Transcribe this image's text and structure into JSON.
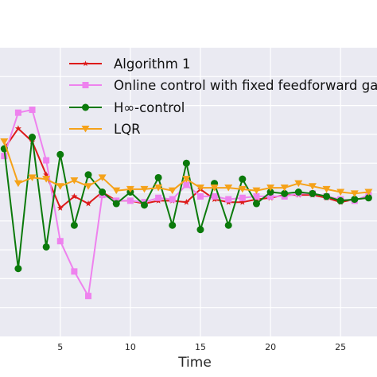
{
  "chart_data": {
    "type": "line",
    "title": "",
    "xlabel": "Time",
    "ylabel": "",
    "xlim": [
      0.7,
      27.6
    ],
    "ylim": [
      -1.0,
      1.0
    ],
    "xticks": [
      5,
      10,
      15,
      20,
      25
    ],
    "xtick_labels": [
      "5",
      "10",
      "15",
      "20",
      "25"
    ],
    "grid": true,
    "legend_position": "top-right",
    "x": [
      1,
      2,
      3,
      4,
      5,
      6,
      7,
      8,
      9,
      10,
      11,
      12,
      13,
      14,
      15,
      16,
      17,
      18,
      19,
      20,
      21,
      22,
      23,
      24,
      25,
      26,
      27
    ],
    "series": [
      {
        "name": "Algorithm 1",
        "color": "#dd1a1a",
        "marker": "star",
        "values": [
          0.3,
          0.44,
          0.35,
          0.12,
          -0.11,
          -0.03,
          -0.08,
          0.0,
          -0.06,
          -0.06,
          -0.08,
          -0.06,
          -0.06,
          -0.07,
          0.02,
          -0.05,
          -0.07,
          -0.07,
          -0.05,
          -0.04,
          -0.02,
          -0.02,
          -0.02,
          -0.04,
          -0.07,
          -0.05,
          -0.04
        ]
      },
      {
        "name": "Online control with fixed feedforward ga",
        "color": "#ee82ee",
        "marker": "square",
        "values": [
          0.25,
          0.55,
          0.57,
          0.22,
          -0.34,
          -0.55,
          -0.72,
          -0.02,
          -0.06,
          -0.06,
          -0.07,
          -0.04,
          -0.05,
          0.05,
          -0.03,
          -0.03,
          -0.05,
          -0.04,
          -0.03,
          -0.03,
          -0.03,
          -0.01,
          -0.01,
          -0.03,
          -0.05,
          -0.06,
          -0.02
        ]
      },
      {
        "name": "H∞-control",
        "color": "#0b7a0b",
        "marker": "circle",
        "values": [
          0.3,
          -0.53,
          0.38,
          -0.38,
          0.26,
          -0.23,
          0.12,
          0.0,
          -0.08,
          0.0,
          -0.09,
          0.1,
          -0.23,
          0.2,
          -0.26,
          0.06,
          -0.23,
          0.09,
          -0.08,
          0.0,
          -0.01,
          0.0,
          -0.01,
          -0.03,
          -0.06,
          -0.05,
          -0.04
        ]
      },
      {
        "name": "LQR",
        "color": "#f5a21a",
        "marker": "triangle-down",
        "values": [
          0.35,
          0.06,
          0.1,
          0.09,
          0.04,
          0.08,
          0.04,
          0.1,
          0.01,
          0.02,
          0.02,
          0.03,
          0.01,
          0.09,
          0.03,
          0.03,
          0.03,
          0.02,
          0.01,
          0.03,
          0.03,
          0.06,
          0.04,
          0.02,
          0.0,
          -0.01,
          0.0
        ]
      }
    ]
  }
}
